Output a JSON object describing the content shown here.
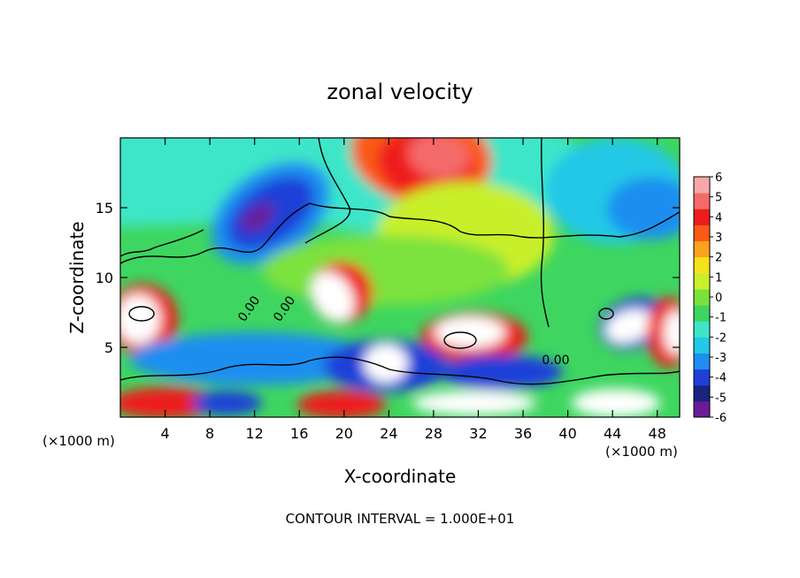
{
  "chart_data": {
    "type": "heatmap",
    "title": "zonal velocity",
    "xlabel": "X-coordinate",
    "ylabel": "Z-coordinate",
    "x_unit_left": "(×1000 m)",
    "x_unit_right": "(×1000 m)",
    "footer": "CONTOUR INTERVAL = 1.000E+01",
    "xlim": [
      0,
      50
    ],
    "ylim": [
      0,
      20
    ],
    "x_ticks": [
      4,
      8,
      12,
      16,
      20,
      24,
      28,
      32,
      36,
      40,
      44,
      48
    ],
    "y_ticks": [
      5,
      10,
      15
    ],
    "colorbar": {
      "range": [
        -6,
        6
      ],
      "ticks": [
        6,
        5,
        4,
        3,
        2,
        1,
        0,
        -1,
        -2,
        -3,
        -4,
        -5,
        -6
      ],
      "colors": [
        "#6a1b9a",
        "#1a237e",
        "#1e40d8",
        "#1f8ef0",
        "#22c8e6",
        "#3ee6c8",
        "#3ed660",
        "#7be23c",
        "#c8f02c",
        "#f6e21c",
        "#fca11e",
        "#fb5a16",
        "#ee1c1c",
        "#f46a6a",
        "#f8a8a8"
      ]
    },
    "contour_labels": [
      "0.00",
      "0.00",
      "0.00"
    ]
  }
}
